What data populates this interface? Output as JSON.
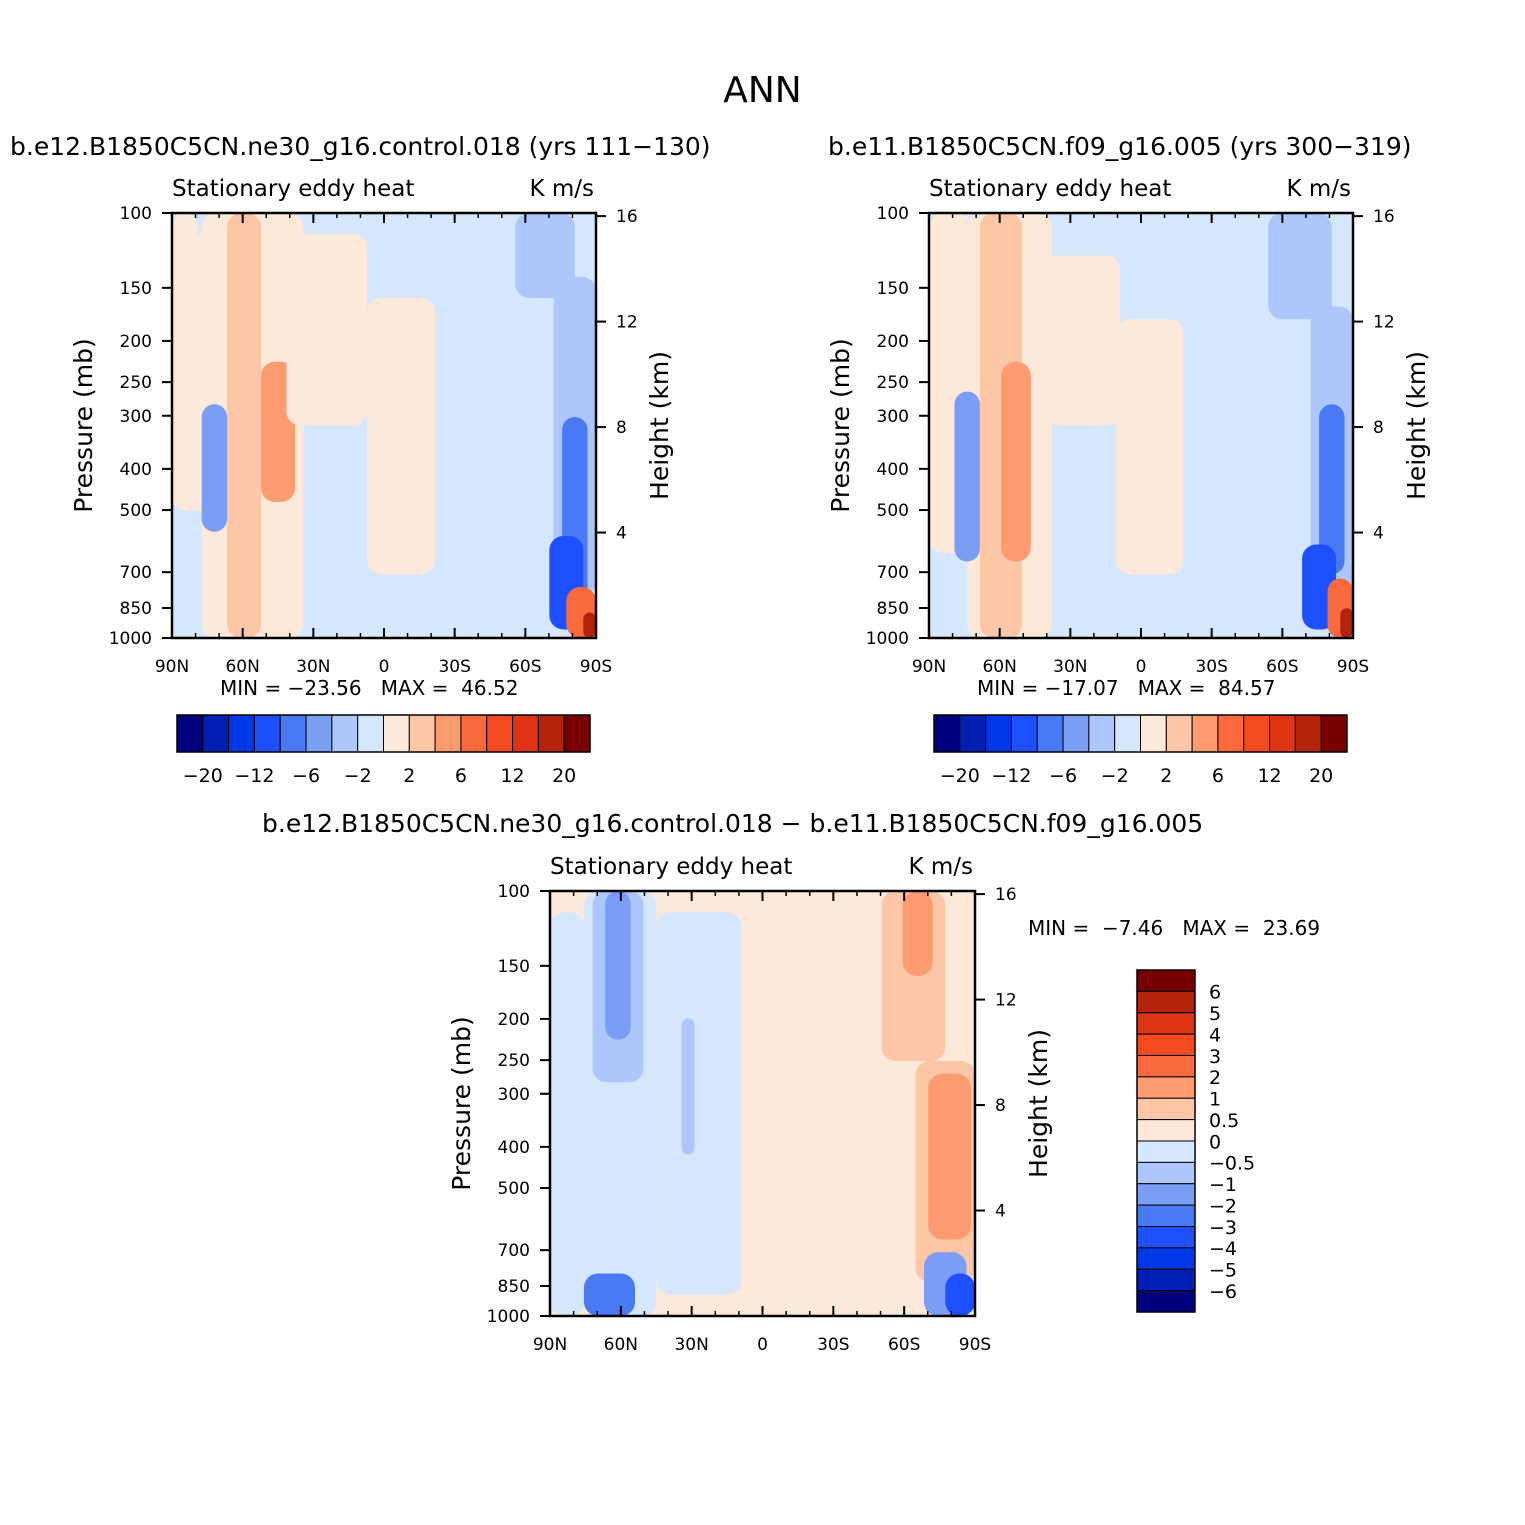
{
  "figure": {
    "title": "ANN"
  },
  "colors": {
    "diff_palette": [
      "#00007f",
      "#0020b4",
      "#0037e6",
      "#1e50ff",
      "#4a79f4",
      "#7b9ef5",
      "#adc6fb",
      "#d5e7fd",
      "#fde9d9",
      "#fdc6a6",
      "#fc9a70",
      "#fb6a3d",
      "#f54b21",
      "#dd3513",
      "#b32309",
      "#7a0000"
    ]
  },
  "chart_data": [
    {
      "type": "heatmap",
      "title": "b.e12.B1850C5CN.ne30_g16.control.018 (yrs 111−130)",
      "subtitle_left": "Stationary eddy heat",
      "subtitle_right": "K m/s",
      "xlabel": "",
      "ylabel": "Pressure (mb)",
      "ylabel_right": "Height (km)",
      "x_ticks": [
        "90N",
        "60N",
        "30N",
        "0",
        "30S",
        "60S",
        "90S"
      ],
      "y_ticks": [
        100,
        150,
        200,
        250,
        300,
        400,
        500,
        700,
        850,
        1000
      ],
      "y_right_ticks": [
        16,
        12,
        8,
        4
      ],
      "y_scale": "log",
      "ylim": [
        1000,
        100
      ],
      "min_label": "MIN =",
      "min_value": "−23.56",
      "max_label": "MAX =",
      "max_value": "46.52",
      "contour_levels": [
        -20,
        -16,
        -12,
        -9,
        -6,
        -4,
        -2,
        0,
        2,
        4,
        6,
        9,
        12,
        16,
        20
      ],
      "colorbar_labels": [
        "−20",
        "−12",
        "−6",
        "−2",
        "2",
        "6",
        "12",
        "20"
      ],
      "legend_placement": "bottom"
    },
    {
      "type": "heatmap",
      "title": "b.e11.B1850C5CN.f09_g16.005 (yrs 300−319)",
      "subtitle_left": "Stationary eddy heat",
      "subtitle_right": "K m/s",
      "xlabel": "",
      "ylabel": "Pressure (mb)",
      "ylabel_right": "Height (km)",
      "x_ticks": [
        "90N",
        "60N",
        "30N",
        "0",
        "30S",
        "60S",
        "90S"
      ],
      "y_ticks": [
        100,
        150,
        200,
        250,
        300,
        400,
        500,
        700,
        850,
        1000
      ],
      "y_right_ticks": [
        16,
        12,
        8,
        4
      ],
      "y_scale": "log",
      "ylim": [
        1000,
        100
      ],
      "min_label": "MIN =",
      "min_value": "−17.07",
      "max_label": "MAX =",
      "max_value": "84.57",
      "contour_levels": [
        -20,
        -16,
        -12,
        -9,
        -6,
        -4,
        -2,
        0,
        2,
        4,
        6,
        9,
        12,
        16,
        20
      ],
      "colorbar_labels": [
        "−20",
        "−12",
        "−6",
        "−2",
        "2",
        "6",
        "12",
        "20"
      ],
      "legend_placement": "bottom"
    },
    {
      "type": "heatmap",
      "title": "b.e12.B1850C5CN.ne30_g16.control.018 − b.e11.B1850C5CN.f09_g16.005",
      "subtitle_left": "Stationary eddy heat",
      "subtitle_right": "K m/s",
      "xlabel": "",
      "ylabel": "Pressure (mb)",
      "ylabel_right": "Height (km)",
      "x_ticks": [
        "90N",
        "60N",
        "30N",
        "0",
        "30S",
        "60S",
        "90S"
      ],
      "y_ticks": [
        100,
        150,
        200,
        250,
        300,
        400,
        500,
        700,
        850,
        1000
      ],
      "y_right_ticks": [
        16,
        12,
        8,
        4
      ],
      "y_scale": "log",
      "ylim": [
        1000,
        100
      ],
      "min_label": "MIN =",
      "min_value": "−7.46",
      "max_label": "MAX =",
      "max_value": "23.69",
      "contour_levels": [
        -6,
        -5,
        -4,
        -3,
        -2,
        -1,
        -0.5,
        0,
        0.5,
        1,
        2,
        3,
        4,
        5,
        6
      ],
      "colorbar_labels": [
        "6",
        "5",
        "4",
        "3",
        "2",
        "1",
        "0.5",
        "0",
        "−0.5",
        "−1",
        "−2",
        "−3",
        "−4",
        "−5",
        "−6"
      ],
      "legend_placement": "right"
    }
  ]
}
